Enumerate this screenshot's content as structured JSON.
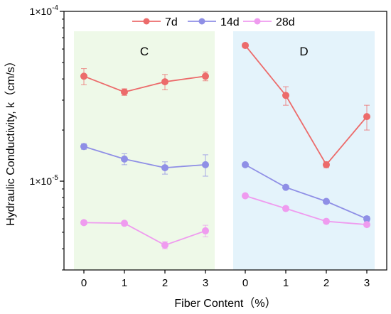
{
  "chart_data": {
    "type": "line",
    "xlabel": "Fiber Content（%）",
    "ylabel": "Hydraulic Conductivity, k（cm/s）",
    "yscale": "log",
    "ylim": [
      3e-06,
      0.0001
    ],
    "y_tick_labels": [
      {
        "mantissa": "1×10",
        "exp": "-5",
        "value": 1e-05
      },
      {
        "mantissa": "1×10",
        "exp": "-4",
        "value": 0.0001
      }
    ],
    "legend": {
      "position": "top"
    },
    "panels": [
      {
        "label": "C",
        "background": "#eef9e8",
        "x": [
          0,
          1,
          2,
          3
        ],
        "series": [
          {
            "name": "7d",
            "color": "#ec6b6b",
            "values": [
              4.15e-05,
              3.35e-05,
              3.85e-05,
              4.15e-05
            ],
            "err": [
              4.5e-06,
              1.5e-06,
              4e-06,
              2.5e-06
            ]
          },
          {
            "name": "14d",
            "color": "#8f8fe6",
            "values": [
              1.6e-05,
              1.35e-05,
              1.2e-05,
              1.25e-05
            ],
            "err": [
              6e-07,
              1e-06,
              1e-06,
              1.8e-06
            ]
          },
          {
            "name": "28d",
            "color": "#ef9bef",
            "values": [
              5.7e-06,
              5.65e-06,
              4.2e-06,
              5.1e-06
            ],
            "err": [
              1.5e-07,
              1.5e-07,
              2e-07,
              4e-07
            ]
          }
        ]
      },
      {
        "label": "D",
        "background": "#e4f3fb",
        "x": [
          0,
          1,
          2,
          3
        ],
        "series": [
          {
            "name": "7d",
            "color": "#ec6b6b",
            "values": [
              6.3e-05,
              3.2e-05,
              1.25e-05,
              2.4e-05
            ],
            "err": [
              1.5e-06,
              4e-06,
              5e-07,
              4e-06
            ]
          },
          {
            "name": "14d",
            "color": "#8f8fe6",
            "values": [
              1.25e-05,
              9.2e-06,
              7.6e-06,
              6e-06
            ],
            "err": [
              2e-07,
              2e-07,
              2e-07,
              2e-07
            ]
          },
          {
            "name": "28d",
            "color": "#ef9bef",
            "values": [
              8.2e-06,
              6.9e-06,
              5.8e-06,
              5.55e-06
            ],
            "err": [
              2e-07,
              2e-07,
              1.5e-07,
              1.5e-07
            ]
          }
        ]
      }
    ]
  }
}
